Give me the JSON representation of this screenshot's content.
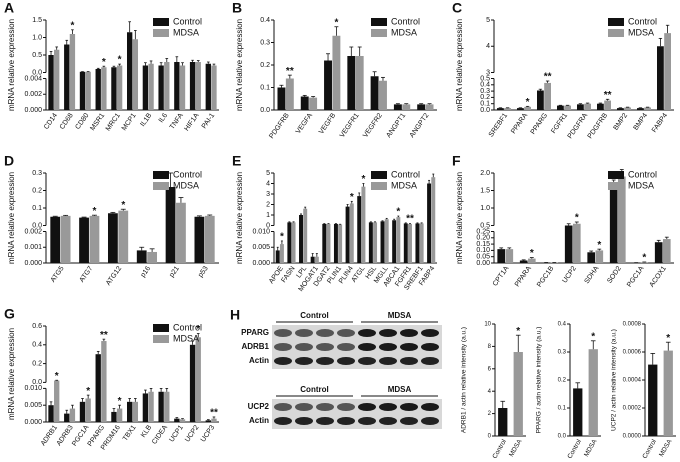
{
  "chart_data": [
    {
      "type": "bar",
      "label": "A",
      "ylabel": "mRNA relative expression",
      "categories": [
        "CD14",
        "CD68",
        "CD80",
        "MSR1",
        "MRC1",
        "MCP1",
        "IL1B",
        "IL6",
        "TNFA",
        "HIF1A",
        "PAI-1"
      ],
      "series": [
        {
          "name": "Control",
          "color": "#111111",
          "values": [
            0.5,
            0.8,
            0.02,
            0.1,
            0.15,
            1.15,
            0.2,
            0.2,
            0.3,
            0.3,
            0.25
          ],
          "errors": [
            0.1,
            0.12,
            0.005,
            0.02,
            0.03,
            0.3,
            0.08,
            0.08,
            0.15,
            0.05,
            0.05
          ]
        },
        {
          "name": "MDSA",
          "color": "#999999",
          "values": [
            0.65,
            1.1,
            0.02,
            0.15,
            0.2,
            0.95,
            0.25,
            0.3,
            0.2,
            0.3,
            0.2
          ],
          "errors": [
            0.08,
            0.12,
            0.005,
            0.03,
            0.04,
            0.25,
            0.08,
            0.1,
            0.08,
            0.04,
            0.04
          ]
        }
      ],
      "significance": [
        null,
        "*",
        null,
        "*",
        "*",
        null,
        null,
        null,
        null,
        null,
        null
      ],
      "segments": [
        {
          "ylim": [
            0,
            0.004
          ],
          "yticks": [
            {
              "value": 0,
              "label": "0.000"
            },
            0.002,
            0.004
          ]
        },
        {
          "ylim": [
            0,
            1.5
          ],
          "yticks": [
            {
              "value": 0,
              "label": "0.0"
            },
            0.5,
            {
              "value": 1,
              "label": "1.0"
            },
            1.5
          ]
        }
      ]
    },
    {
      "type": "bar",
      "label": "B",
      "ylabel": "mRNA relative expression",
      "categories": [
        "PDGFRB",
        "VEGFA",
        "VEGFB",
        "VEGFR1",
        "VEGFR2",
        "ANGPT1",
        "ANGPT2"
      ],
      "series": [
        {
          "name": "Control",
          "color": "#111111",
          "values": [
            0.1,
            0.06,
            0.22,
            0.24,
            0.15,
            0.025,
            0.025
          ],
          "errors": [
            0.01,
            0.005,
            0.03,
            0.04,
            0.02,
            0.003,
            0.003
          ]
        },
        {
          "name": "MDSA",
          "color": "#999999",
          "values": [
            0.14,
            0.055,
            0.33,
            0.24,
            0.13,
            0.025,
            0.025
          ],
          "errors": [
            0.015,
            0.005,
            0.04,
            0.04,
            0.015,
            0.003,
            0.003
          ]
        }
      ],
      "significance": [
        "**",
        null,
        "*",
        null,
        null,
        null,
        null
      ],
      "ylim": [
        0,
        0.4
      ],
      "yticks": [
        {
          "value": 0,
          "label": "0.0"
        },
        0.1,
        0.2,
        0.3,
        0.4
      ]
    },
    {
      "type": "bar",
      "label": "C",
      "ylabel": "mRNA relative expression",
      "categories": [
        "SREBF1",
        "PPARA",
        "PPARG",
        "FGFR1",
        "PDGFRA",
        "PDGFRB",
        "BMP2",
        "BMP4",
        "FABP4"
      ],
      "series": [
        {
          "name": "Control",
          "color": "#111111",
          "values": [
            0.03,
            0.03,
            0.31,
            0.07,
            0.09,
            0.1,
            0.03,
            0.03,
            4.0
          ],
          "errors": [
            0.005,
            0.005,
            0.02,
            0.005,
            0.01,
            0.01,
            0.005,
            0.005,
            0.3
          ]
        },
        {
          "name": "MDSA",
          "color": "#999999",
          "values": [
            0.03,
            0.05,
            0.43,
            0.07,
            0.1,
            0.15,
            0.04,
            0.04,
            4.5
          ],
          "errors": [
            0.005,
            0.008,
            0.03,
            0.005,
            0.01,
            0.02,
            0.005,
            0.005,
            0.3
          ]
        }
      ],
      "significance": [
        null,
        "*",
        "**",
        null,
        null,
        "**",
        null,
        null,
        null
      ],
      "segments": [
        {
          "ylim": [
            0,
            0.5
          ],
          "yticks": [
            {
              "value": 0,
              "label": "0.0"
            },
            0.1,
            0.2,
            0.3,
            0.4,
            0.5
          ]
        },
        {
          "ylim": [
            3,
            5
          ],
          "yticks": [
            3,
            4,
            5
          ]
        }
      ]
    },
    {
      "type": "bar",
      "label": "D",
      "ylabel": "mRNA relative expression",
      "categories": [
        "ATG5",
        "ATG7",
        "ATG12",
        "p16",
        "p21",
        "p53"
      ],
      "series": [
        {
          "name": "Control",
          "color": "#111111",
          "values": [
            0.05,
            0.045,
            0.07,
            0.0008,
            0.22,
            0.05
          ],
          "errors": [
            0.003,
            0.003,
            0.005,
            0.0002,
            0.08,
            0.005
          ]
        },
        {
          "name": "MDSA",
          "color": "#999999",
          "values": [
            0.055,
            0.055,
            0.085,
            0.0007,
            0.13,
            0.055
          ],
          "errors": [
            0.003,
            0.004,
            0.008,
            0.0002,
            0.03,
            0.005
          ]
        }
      ],
      "significance": [
        null,
        "*",
        "*",
        null,
        null,
        null
      ],
      "segments": [
        {
          "ylim": [
            0,
            0.002
          ],
          "yticks": [
            {
              "value": 0,
              "label": "0.000"
            },
            0.001,
            0.002
          ]
        },
        {
          "ylim": [
            0,
            0.3
          ],
          "yticks": [
            {
              "value": 0,
              "label": "0.0"
            },
            0.1,
            0.2,
            0.3
          ]
        }
      ]
    },
    {
      "type": "bar",
      "label": "E",
      "ylabel": "mRNA relative expression",
      "categories": [
        "APOE",
        "FASN",
        "LPL",
        "MOGAT1",
        "DGAT2",
        "PLIN1",
        "PLIN4",
        "ATGL",
        "HSL",
        "MGLL",
        "ABCA1",
        "FGFR1",
        "SREBF1",
        "FABP4"
      ],
      "series": [
        {
          "name": "Control",
          "color": "#111111",
          "values": [
            0.004,
            0.3,
            1.0,
            0.002,
            0.15,
            0.15,
            1.8,
            2.8,
            0.3,
            0.4,
            0.5,
            0.2,
            0.2,
            4.0
          ],
          "errors": [
            0.001,
            0.05,
            0.1,
            0.001,
            0.03,
            0.03,
            0.2,
            0.3,
            0.05,
            0.05,
            0.1,
            0.05,
            0.05,
            0.3
          ]
        },
        {
          "name": "MDSA",
          "color": "#999999",
          "values": [
            0.006,
            0.3,
            1.6,
            0.002,
            0.15,
            0.1,
            2.1,
            3.7,
            0.3,
            0.6,
            0.8,
            0.15,
            0.2,
            4.6
          ],
          "errors": [
            0.001,
            0.05,
            0.15,
            0.001,
            0.03,
            0.02,
            0.2,
            0.3,
            0.05,
            0.08,
            0.1,
            0.03,
            0.05,
            0.3
          ]
        }
      ],
      "significance": [
        "*",
        null,
        null,
        null,
        null,
        null,
        "*",
        "*",
        null,
        null,
        "*",
        "**",
        null,
        null
      ],
      "segments": [
        {
          "ylim": [
            0,
            0.01
          ],
          "yticks": [
            {
              "value": 0,
              "label": "0.000"
            },
            0.005,
            {
              "value": 0.01,
              "label": "0.010"
            }
          ]
        },
        {
          "ylim": [
            0,
            5
          ],
          "yticks": [
            0,
            1,
            2,
            3,
            4,
            5
          ]
        }
      ]
    },
    {
      "type": "bar",
      "label": "F",
      "ylabel": "mRNA relative expression",
      "categories": [
        "CPT1A",
        "PPARA",
        "PGC1B",
        "UCP2",
        "SDHA",
        "SOD2",
        "PGC1A",
        "ACOX1"
      ],
      "series": [
        {
          "name": "Control",
          "color": "#111111",
          "values": [
            0.11,
            0.02,
            0.003,
            0.5,
            0.085,
            1.6,
            0.002,
            0.165
          ],
          "errors": [
            0.01,
            0.005,
            0.001,
            0.05,
            0.01,
            0.2,
            0.001,
            0.015
          ]
        },
        {
          "name": "MDSA",
          "color": "#999999",
          "values": [
            0.11,
            0.035,
            0.003,
            0.55,
            0.1,
            1.9,
            0.006,
            0.19
          ],
          "errors": [
            0.01,
            0.008,
            0.001,
            0.05,
            0.01,
            0.2,
            0.002,
            0.015
          ]
        }
      ],
      "significance": [
        null,
        "*",
        null,
        "*",
        "*",
        null,
        "*",
        null
      ],
      "segments": [
        {
          "ylim": [
            0,
            0.25
          ],
          "yticks": [
            {
              "value": 0,
              "label": "0.00"
            },
            0.05,
            {
              "value": 0.1,
              "label": "0.10"
            },
            0.15,
            {
              "value": 0.2,
              "label": "0.20"
            },
            0.25
          ]
        },
        {
          "ylim": [
            0.5,
            2
          ],
          "yticks": [
            0.5,
            {
              "value": 1,
              "label": "1.0"
            },
            1.5,
            {
              "value": 2,
              "label": "2.0"
            }
          ]
        }
      ]
    },
    {
      "type": "bar",
      "label": "G",
      "ylabel": "mRNA relative expression",
      "categories": [
        "ADRB1",
        "ADRB3",
        "PGC1A",
        "PPARG",
        "PRDM16",
        "TBX1",
        "KLB",
        "CIDEA",
        "UCP1",
        "UCP2",
        "UCP3"
      ],
      "series": [
        {
          "name": "Control",
          "color": "#111111",
          "values": [
            0.005,
            0.0025,
            0.006,
            0.3,
            0.003,
            0.006,
            0.0085,
            0.009,
            0.001,
            0.4,
            0.0005
          ],
          "errors": [
            0.001,
            0.001,
            0.001,
            0.03,
            0.001,
            0.001,
            0.001,
            0.001,
            0.0003,
            0.04,
            0.0002
          ]
        },
        {
          "name": "MDSA",
          "color": "#999999",
          "values": [
            0.02,
            0.004,
            0.007,
            0.44,
            0.004,
            0.006,
            0.009,
            0.009,
            0.0008,
            0.48,
            0.001
          ],
          "errors": [
            0.003,
            0.001,
            0.001,
            0.02,
            0.001,
            0.001,
            0.001,
            0.001,
            0.0002,
            0.04,
            0.0005
          ]
        }
      ],
      "significance": [
        "*",
        null,
        "*",
        "**",
        "*",
        null,
        null,
        null,
        null,
        "*",
        "**"
      ],
      "segments": [
        {
          "ylim": [
            0,
            0.01
          ],
          "yticks": [
            {
              "value": 0,
              "label": "0.000"
            },
            0.005,
            {
              "value": 0.01,
              "label": "0.010"
            }
          ]
        },
        {
          "ylim": [
            0,
            0.6
          ],
          "yticks": [
            {
              "value": 0,
              "label": "0.0"
            },
            0.2,
            0.4,
            0.6
          ]
        }
      ]
    },
    {
      "type": "blot",
      "label": "H",
      "top_groups": [
        "Control",
        "MDSA"
      ],
      "top_rows": [
        "PPARG",
        "ADRB1",
        "Actin"
      ],
      "bottom_groups": [
        "Control",
        "MDSA"
      ],
      "bottom_rows": [
        "UCP2",
        "Actin"
      ]
    },
    {
      "type": "bar",
      "ylabel": "ADRB1 / actin relative intensity (a.u.)",
      "categories": [
        "Control",
        "MDSA"
      ],
      "values": [
        2.5,
        7.5
      ],
      "errors": [
        0.6,
        1.5
      ],
      "colors": [
        "#111111",
        "#999999"
      ],
      "significance": [
        null,
        "*"
      ],
      "ylim": [
        0,
        10
      ],
      "yticks": [
        0,
        2,
        4,
        6,
        8,
        10
      ]
    },
    {
      "type": "bar",
      "ylabel": "PPARG / actin relative intensity (a.u.)",
      "categories": [
        "Control",
        "MDSA"
      ],
      "values": [
        0.17,
        0.31
      ],
      "errors": [
        0.02,
        0.03
      ],
      "colors": [
        "#111111",
        "#999999"
      ],
      "significance": [
        null,
        "*"
      ],
      "ylim": [
        0,
        0.4
      ],
      "yticks": [
        {
          "value": 0,
          "label": "0.0"
        },
        0.1,
        0.2,
        0.3,
        0.4
      ]
    },
    {
      "type": "bar",
      "ylabel": "UCP2 / actin relative intensity (a.u.)",
      "categories": [
        "Control",
        "MDSA"
      ],
      "values": [
        0.00051,
        0.00061
      ],
      "errors": [
        8e-05,
        6e-05
      ],
      "colors": [
        "#111111",
        "#999999"
      ],
      "significance": [
        null,
        "*"
      ],
      "ylim": [
        0,
        0.0008
      ],
      "yticks": [
        {
          "value": 0,
          "label": "0.0000"
        },
        0.0002,
        0.0004,
        0.0006,
        0.0008
      ]
    }
  ]
}
